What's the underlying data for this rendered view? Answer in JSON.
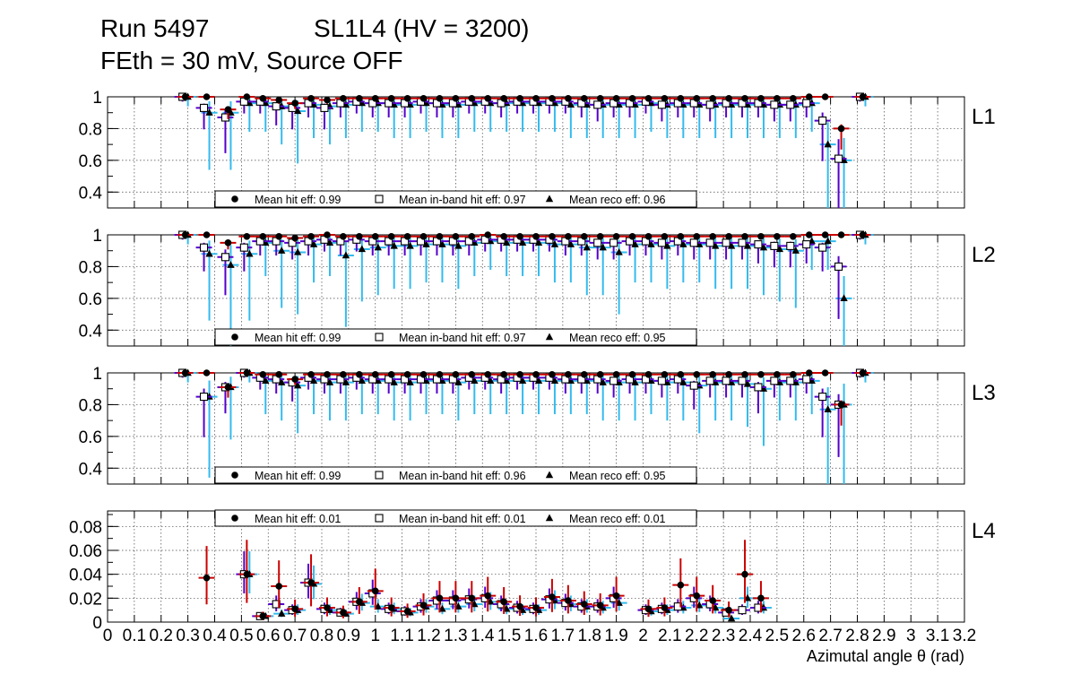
{
  "header": {
    "run": "Run 5497",
    "chamber": "SL1L4 (HV = 3200)",
    "settings": "FEth = 30 mV, Source OFF"
  },
  "colors": {
    "hit": "#000000",
    "hit_err": "#cc0000",
    "inband": "#000000",
    "inband_err": "#5500cc",
    "reco": "#000000",
    "reco_err": "#33bbee",
    "grid": "#444444"
  },
  "chart_data": {
    "type": "scatter",
    "title": "SL1L4 (HV = 3200)",
    "xlabel": "Azimutal angle θ (rad)",
    "xlim": [
      0,
      3.2
    ],
    "x_tick_labels": [
      "0",
      "0.1",
      "0.2",
      "0.3",
      "0.4",
      "0.5",
      "0.6",
      "0.7",
      "0.8",
      "0.9",
      "1",
      "1.1",
      "1.2",
      "1.3",
      "1.4",
      "1.5",
      "1.6",
      "1.7",
      "1.8",
      "1.9",
      "2",
      "2.1",
      "2.2",
      "2.3",
      "2.4",
      "2.5",
      "2.6",
      "2.7",
      "2.8",
      "2.9",
      "3",
      "3.1",
      "3.2"
    ],
    "x": [
      0.29,
      0.37,
      0.45,
      0.52,
      0.58,
      0.64,
      0.7,
      0.76,
      0.82,
      0.88,
      0.94,
      1.0,
      1.06,
      1.12,
      1.18,
      1.24,
      1.3,
      1.36,
      1.42,
      1.48,
      1.54,
      1.6,
      1.66,
      1.72,
      1.78,
      1.84,
      1.9,
      1.96,
      2.02,
      2.08,
      2.14,
      2.2,
      2.26,
      2.32,
      2.38,
      2.44,
      2.5,
      2.56,
      2.62,
      2.68,
      2.74,
      2.82
    ],
    "panels": [
      {
        "label": "L1",
        "ylim": [
          0.3,
          1.0
        ],
        "yticks": [
          "0.4",
          "0.6",
          "0.8",
          "1"
        ],
        "legend": [
          "Mean hit  eff: 0.99",
          "Mean in-band hit eff: 0.97",
          "Mean reco eff: 0.96"
        ],
        "series": [
          {
            "name": "hit",
            "values": [
              1.0,
              1.0,
              0.92,
              1.0,
              0.99,
              0.98,
              0.96,
              0.99,
              0.98,
              0.99,
              0.99,
              0.99,
              0.99,
              0.99,
              0.99,
              0.99,
              0.99,
              0.99,
              0.99,
              0.99,
              0.99,
              0.99,
              0.99,
              0.99,
              0.99,
              0.99,
              0.99,
              0.99,
              0.99,
              0.99,
              0.99,
              0.99,
              0.99,
              0.99,
              0.99,
              0.99,
              0.99,
              0.99,
              1.0,
              1.0,
              0.8,
              1.0
            ]
          },
          {
            "name": "inband",
            "values": [
              1.0,
              0.93,
              0.87,
              0.97,
              0.97,
              0.94,
              0.93,
              0.96,
              0.93,
              0.96,
              0.97,
              0.96,
              0.96,
              0.96,
              0.97,
              0.96,
              0.96,
              0.97,
              0.97,
              0.96,
              0.97,
              0.97,
              0.97,
              0.97,
              0.96,
              0.95,
              0.96,
              0.96,
              0.97,
              0.95,
              0.96,
              0.96,
              0.95,
              0.96,
              0.96,
              0.96,
              0.95,
              0.95,
              0.96,
              0.85,
              0.61,
              1.0
            ]
          },
          {
            "name": "reco",
            "values": [
              1.0,
              0.9,
              0.9,
              0.96,
              0.96,
              0.94,
              0.91,
              0.95,
              0.94,
              0.95,
              0.96,
              0.96,
              0.95,
              0.95,
              0.96,
              0.95,
              0.95,
              0.96,
              0.96,
              0.96,
              0.96,
              0.96,
              0.96,
              0.95,
              0.95,
              0.95,
              0.95,
              0.95,
              0.96,
              0.95,
              0.95,
              0.95,
              0.95,
              0.95,
              0.95,
              0.95,
              0.95,
              0.95,
              0.96,
              0.7,
              0.6,
              1.0
            ]
          }
        ]
      },
      {
        "label": "L2",
        "ylim": [
          0.3,
          1.0
        ],
        "yticks": [
          "0.4",
          "0.6",
          "0.8",
          "1"
        ],
        "legend": [
          "Mean hit  eff: 0.99",
          "Mean in-band hit eff: 0.97",
          "Mean reco eff: 0.95"
        ],
        "series": [
          {
            "name": "hit",
            "values": [
              1.0,
              1.0,
              0.95,
              0.99,
              0.99,
              0.99,
              0.98,
              0.99,
              1.0,
              0.99,
              0.99,
              0.99,
              0.99,
              0.99,
              0.99,
              0.99,
              0.99,
              0.99,
              1.0,
              0.99,
              0.99,
              0.99,
              0.99,
              0.99,
              0.99,
              0.99,
              0.99,
              0.99,
              0.99,
              0.99,
              0.99,
              0.99,
              0.99,
              0.99,
              0.99,
              0.99,
              0.99,
              0.99,
              1.0,
              1.0,
              1.0,
              1.0
            ]
          },
          {
            "name": "inband",
            "values": [
              1.0,
              0.92,
              0.86,
              0.92,
              0.96,
              0.96,
              0.95,
              0.96,
              0.97,
              0.96,
              0.97,
              0.96,
              0.96,
              0.96,
              0.96,
              0.96,
              0.96,
              0.96,
              0.97,
              0.97,
              0.97,
              0.97,
              0.97,
              0.96,
              0.96,
              0.95,
              0.95,
              0.96,
              0.96,
              0.95,
              0.96,
              0.95,
              0.95,
              0.95,
              0.95,
              0.94,
              0.93,
              0.93,
              0.94,
              0.92,
              0.8,
              1.0
            ]
          },
          {
            "name": "reco",
            "values": [
              1.0,
              0.88,
              0.81,
              0.88,
              0.95,
              0.9,
              0.89,
              0.94,
              0.95,
              0.87,
              0.91,
              0.92,
              0.93,
              0.93,
              0.94,
              0.94,
              0.93,
              0.95,
              0.96,
              0.95,
              0.95,
              0.95,
              0.94,
              0.94,
              0.92,
              0.92,
              0.89,
              0.94,
              0.94,
              0.93,
              0.94,
              0.94,
              0.93,
              0.93,
              0.93,
              0.92,
              0.91,
              0.9,
              0.96,
              0.96,
              0.6,
              1.0
            ]
          }
        ]
      },
      {
        "label": "L3",
        "ylim": [
          0.3,
          1.0
        ],
        "yticks": [
          "0.4",
          "0.6",
          "0.8",
          "1"
        ],
        "legend": [
          "Mean hit  eff: 0.99",
          "Mean in-band hit eff: 0.96",
          "Mean reco eff: 0.95"
        ],
        "series": [
          {
            "name": "hit",
            "values": [
              1.0,
              1.0,
              0.91,
              1.0,
              0.99,
              0.99,
              0.96,
              0.99,
              0.99,
              0.99,
              0.99,
              0.99,
              0.99,
              0.99,
              0.99,
              0.99,
              0.99,
              0.99,
              0.99,
              0.99,
              0.99,
              0.99,
              0.99,
              0.99,
              0.99,
              0.99,
              0.99,
              0.99,
              0.99,
              0.99,
              0.99,
              0.99,
              0.99,
              0.99,
              0.99,
              0.99,
              0.99,
              0.99,
              1.0,
              1.0,
              0.8,
              1.0
            ]
          },
          {
            "name": "inband",
            "values": [
              1.0,
              0.85,
              0.91,
              1.0,
              0.97,
              0.96,
              0.94,
              0.97,
              0.96,
              0.96,
              0.97,
              0.96,
              0.96,
              0.96,
              0.96,
              0.96,
              0.96,
              0.97,
              0.97,
              0.96,
              0.97,
              0.97,
              0.97,
              0.96,
              0.96,
              0.96,
              0.95,
              0.96,
              0.96,
              0.95,
              0.96,
              0.92,
              0.95,
              0.95,
              0.95,
              0.91,
              0.95,
              0.95,
              0.96,
              0.85,
              0.8,
              1.0
            ]
          },
          {
            "name": "reco",
            "values": [
              1.0,
              0.85,
              0.91,
              1.0,
              0.95,
              0.94,
              0.92,
              0.95,
              0.94,
              0.94,
              0.95,
              0.95,
              0.94,
              0.94,
              0.95,
              0.95,
              0.94,
              0.95,
              0.95,
              0.95,
              0.95,
              0.95,
              0.95,
              0.95,
              0.95,
              0.94,
              0.94,
              0.94,
              0.95,
              0.94,
              0.94,
              0.92,
              0.94,
              0.94,
              0.93,
              0.9,
              0.94,
              0.94,
              0.95,
              0.77,
              0.8,
              1.0
            ]
          }
        ]
      },
      {
        "label": "L4",
        "ylim": [
          0.0,
          0.093
        ],
        "yticks": [
          "0",
          "0.02",
          "0.04",
          "0.06",
          "0.08"
        ],
        "legend": [
          "Mean hit  eff: 0.01",
          "Mean in-band hit eff: 0.01",
          "Mean reco eff: 0.01"
        ],
        "series": [
          {
            "name": "hit",
            "values": [
              null,
              0.037,
              null,
              0.04,
              0.005,
              0.03,
              0.011,
              0.033,
              0.012,
              0.008,
              0.017,
              0.026,
              0.012,
              0.009,
              0.014,
              0.02,
              0.02,
              0.02,
              0.022,
              0.017,
              0.013,
              0.012,
              0.021,
              0.018,
              0.015,
              0.014,
              0.022,
              null,
              0.011,
              0.012,
              0.031,
              0.022,
              0.018,
              0.01,
              0.04,
              0.02,
              null,
              null,
              null,
              null,
              null,
              null
            ]
          },
          {
            "name": "inband",
            "values": [
              null,
              null,
              null,
              0.04,
              0.005,
              0.015,
              0.01,
              0.033,
              0.011,
              0.008,
              0.017,
              0.024,
              0.011,
              0.009,
              0.013,
              0.018,
              0.018,
              0.019,
              0.02,
              0.015,
              0.012,
              0.011,
              0.019,
              0.016,
              0.013,
              0.013,
              0.02,
              null,
              0.01,
              0.011,
              0.013,
              0.02,
              0.015,
              0.008,
              0.01,
              0.012,
              null,
              null,
              null,
              null,
              null,
              null
            ]
          },
          {
            "name": "reco",
            "values": [
              null,
              null,
              null,
              0.04,
              0.005,
              0.007,
              0.01,
              0.032,
              0.01,
              0.007,
              0.016,
              0.013,
              0.011,
              0.008,
              0.013,
              0.011,
              0.013,
              0.015,
              0.017,
              0.011,
              0.01,
              0.01,
              0.018,
              0.015,
              0.013,
              0.012,
              0.016,
              null,
              0.009,
              0.01,
              0.012,
              0.014,
              0.012,
              0.003,
              0.02,
              0.012,
              null,
              null,
              null,
              null,
              null,
              null
            ]
          }
        ]
      }
    ]
  }
}
